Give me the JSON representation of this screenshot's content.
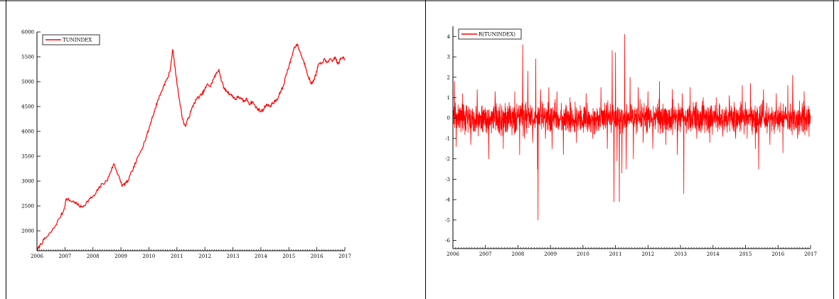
{
  "page": {
    "line_color": "#ff0000",
    "axis_color": "#000000",
    "frame_color": "#000000"
  },
  "chart_data": [
    {
      "type": "line",
      "title": "",
      "xlabel": "",
      "ylabel": "",
      "legend": {
        "label": "TUNINDEX",
        "placement": "top-left"
      },
      "xlim": [
        2006,
        2017
      ],
      "ylim": [
        1600,
        6000
      ],
      "grid": false,
      "x_ticks": [
        2006,
        2007,
        2008,
        2009,
        2010,
        2011,
        2012,
        2013,
        2014,
        2015,
        2016,
        2017
      ],
      "x_tick_labels": [
        "2006",
        "2007",
        "2008",
        "2009",
        "2010",
        "2011",
        "2012",
        "2013",
        "2014",
        "2015",
        "2016",
        "2017"
      ],
      "y_ticks": [
        2000,
        2500,
        3000,
        3500,
        4000,
        4500,
        5000,
        5500,
        6000
      ],
      "y_tick_labels": [
        "2000",
        "2500",
        "3000",
        "3500",
        "4000",
        "4500",
        "5000",
        "5500",
        "6000"
      ],
      "series": [
        {
          "name": "TUNINDEX",
          "color": "#ff0000",
          "x": [
            2006.0,
            2006.1,
            2006.25,
            2006.4,
            2006.6,
            2006.8,
            2006.95,
            2007.05,
            2007.2,
            2007.35,
            2007.5,
            2007.6,
            2007.75,
            2007.9,
            2008.05,
            2008.2,
            2008.35,
            2008.5,
            2008.6,
            2008.75,
            2008.85,
            2008.95,
            2009.05,
            2009.15,
            2009.25,
            2009.4,
            2009.55,
            2009.7,
            2009.85,
            2010.0,
            2010.1,
            2010.2,
            2010.3,
            2010.45,
            2010.55,
            2010.65,
            2010.75,
            2010.85,
            2010.95,
            2011.02,
            2011.1,
            2011.2,
            2011.3,
            2011.4,
            2011.5,
            2011.6,
            2011.7,
            2011.8,
            2011.9,
            2012.0,
            2012.1,
            2012.2,
            2012.3,
            2012.4,
            2012.5,
            2012.6,
            2012.7,
            2012.8,
            2012.9,
            2013.0,
            2013.1,
            2013.2,
            2013.3,
            2013.4,
            2013.5,
            2013.6,
            2013.7,
            2013.8,
            2013.9,
            2014.0,
            2014.1,
            2014.2,
            2014.3,
            2014.4,
            2014.5,
            2014.6,
            2014.7,
            2014.8,
            2014.9,
            2015.0,
            2015.1,
            2015.2,
            2015.3,
            2015.4,
            2015.5,
            2015.6,
            2015.7,
            2015.8,
            2015.9,
            2016.0,
            2016.05,
            2016.15,
            2016.25,
            2016.35,
            2016.45,
            2016.55,
            2016.65,
            2016.75,
            2016.85,
            2016.95,
            2017.0
          ],
          "values": [
            1600,
            1700,
            1820,
            1900,
            2050,
            2250,
            2400,
            2650,
            2600,
            2580,
            2500,
            2480,
            2550,
            2650,
            2700,
            2850,
            2950,
            3000,
            3150,
            3350,
            3200,
            3050,
            2900,
            2950,
            3000,
            3200,
            3400,
            3600,
            3800,
            4050,
            4250,
            4400,
            4600,
            4800,
            4950,
            5050,
            5200,
            5650,
            5200,
            4900,
            4600,
            4250,
            4100,
            4250,
            4400,
            4550,
            4650,
            4700,
            4750,
            4850,
            4950,
            4900,
            5050,
            5150,
            5250,
            5000,
            4850,
            4800,
            4750,
            4700,
            4650,
            4700,
            4650,
            4600,
            4650,
            4550,
            4600,
            4500,
            4450,
            4400,
            4450,
            4550,
            4500,
            4550,
            4600,
            4650,
            4800,
            4900,
            5150,
            5300,
            5500,
            5700,
            5750,
            5600,
            5450,
            5300,
            5100,
            4950,
            5050,
            5200,
            5350,
            5350,
            5450,
            5380,
            5450,
            5400,
            5500,
            5350,
            5450,
            5500,
            5450
          ]
        }
      ]
    },
    {
      "type": "line",
      "title": "",
      "xlabel": "",
      "ylabel": "",
      "legend": {
        "label": "R(TUNINDEX)",
        "placement": "top-left"
      },
      "xlim": [
        2006,
        2017
      ],
      "ylim": [
        -6.4,
        4.5
      ],
      "grid": false,
      "x_ticks": [
        2006,
        2007,
        2008,
        2009,
        2010,
        2011,
        2012,
        2013,
        2014,
        2015,
        2016,
        2017
      ],
      "x_tick_labels": [
        "2006",
        "2007",
        "2008",
        "2009",
        "2010",
        "2011",
        "2012",
        "2013",
        "2014",
        "2015",
        "2016",
        "2017"
      ],
      "y_ticks": [
        -6,
        -5,
        -4,
        -3,
        -2,
        -1,
        0,
        1,
        2,
        3,
        4
      ],
      "y_tick_labels": [
        "-6",
        "-5",
        "-4",
        "-3",
        "-2",
        "-1",
        "0",
        "1",
        "2",
        "3",
        "4"
      ],
      "series": [
        {
          "name": "R(TUNINDEX)",
          "color": "#ff0000",
          "noise_amplitude": 0.55,
          "noise_samples": 1400,
          "spikes": [
            {
              "x": 2006.05,
              "value": 1.8
            },
            {
              "x": 2006.1,
              "value": -1.4
            },
            {
              "x": 2006.3,
              "value": 1.2
            },
            {
              "x": 2006.55,
              "value": -1.3
            },
            {
              "x": 2006.75,
              "value": 1.4
            },
            {
              "x": 2007.1,
              "value": -2.0
            },
            {
              "x": 2007.3,
              "value": 1.3
            },
            {
              "x": 2007.55,
              "value": -1.5
            },
            {
              "x": 2007.9,
              "value": 1.3
            },
            {
              "x": 2008.05,
              "value": -1.8
            },
            {
              "x": 2008.15,
              "value": 3.6
            },
            {
              "x": 2008.2,
              "value": -1.0
            },
            {
              "x": 2008.3,
              "value": 2.3
            },
            {
              "x": 2008.45,
              "value": -1.2
            },
            {
              "x": 2008.55,
              "value": 2.9
            },
            {
              "x": 2008.6,
              "value": -2.5
            },
            {
              "x": 2008.62,
              "value": -5.0
            },
            {
              "x": 2008.7,
              "value": 1.4
            },
            {
              "x": 2008.85,
              "value": -1.0
            },
            {
              "x": 2008.95,
              "value": 1.5
            },
            {
              "x": 2009.05,
              "value": -1.5
            },
            {
              "x": 2009.2,
              "value": 1.3
            },
            {
              "x": 2009.4,
              "value": -1.8
            },
            {
              "x": 2009.6,
              "value": 1.0
            },
            {
              "x": 2009.8,
              "value": -1.2
            },
            {
              "x": 2010.1,
              "value": 1.2
            },
            {
              "x": 2010.3,
              "value": -1.0
            },
            {
              "x": 2010.55,
              "value": 1.5
            },
            {
              "x": 2010.75,
              "value": -1.5
            },
            {
              "x": 2010.9,
              "value": 3.3
            },
            {
              "x": 2010.95,
              "value": -4.1
            },
            {
              "x": 2011.0,
              "value": 3.2
            },
            {
              "x": 2011.05,
              "value": -2.1
            },
            {
              "x": 2011.12,
              "value": -4.1
            },
            {
              "x": 2011.2,
              "value": -2.7
            },
            {
              "x": 2011.28,
              "value": 4.1
            },
            {
              "x": 2011.33,
              "value": -2.5
            },
            {
              "x": 2011.45,
              "value": 2.0
            },
            {
              "x": 2011.55,
              "value": -2.0
            },
            {
              "x": 2011.7,
              "value": 1.5
            },
            {
              "x": 2011.85,
              "value": -1.2
            },
            {
              "x": 2012.0,
              "value": 1.3
            },
            {
              "x": 2012.15,
              "value": -1.5
            },
            {
              "x": 2012.35,
              "value": 1.8
            },
            {
              "x": 2012.55,
              "value": -1.3
            },
            {
              "x": 2012.75,
              "value": 1.4
            },
            {
              "x": 2012.9,
              "value": -1.8
            },
            {
              "x": 2013.05,
              "value": 1.2
            },
            {
              "x": 2013.1,
              "value": -3.7
            },
            {
              "x": 2013.3,
              "value": 1.5
            },
            {
              "x": 2013.5,
              "value": -1.0
            },
            {
              "x": 2013.7,
              "value": 1.0
            },
            {
              "x": 2013.9,
              "value": -1.2
            },
            {
              "x": 2014.1,
              "value": 1.0
            },
            {
              "x": 2014.3,
              "value": -0.9
            },
            {
              "x": 2014.5,
              "value": 1.1
            },
            {
              "x": 2014.7,
              "value": -1.0
            },
            {
              "x": 2014.9,
              "value": 1.6
            },
            {
              "x": 2015.05,
              "value": -1.0
            },
            {
              "x": 2015.15,
              "value": 1.7
            },
            {
              "x": 2015.3,
              "value": -1.5
            },
            {
              "x": 2015.4,
              "value": -2.5
            },
            {
              "x": 2015.55,
              "value": 1.4
            },
            {
              "x": 2015.75,
              "value": -1.3
            },
            {
              "x": 2015.95,
              "value": 1.2
            },
            {
              "x": 2016.15,
              "value": -1.7
            },
            {
              "x": 2016.3,
              "value": 1.6
            },
            {
              "x": 2016.45,
              "value": 2.1
            },
            {
              "x": 2016.6,
              "value": -1.0
            },
            {
              "x": 2016.8,
              "value": 1.3
            },
            {
              "x": 2016.95,
              "value": -0.9
            }
          ]
        }
      ]
    }
  ]
}
